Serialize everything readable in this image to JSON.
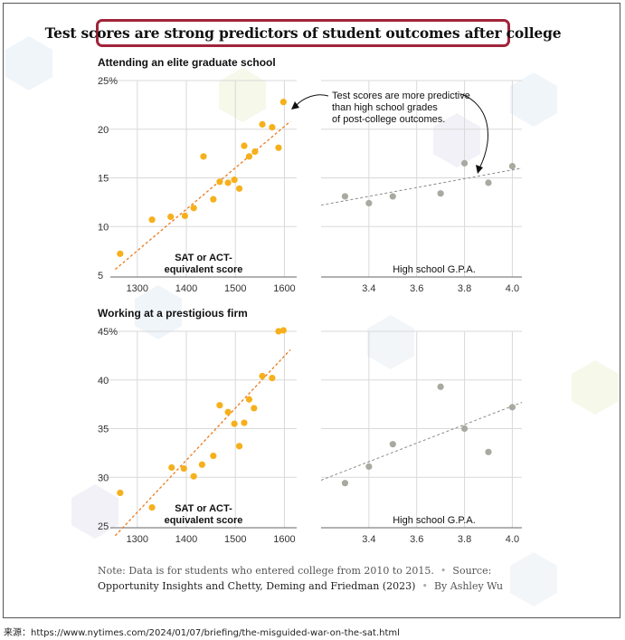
{
  "title": "Test scores are strong predictors of student outcomes after college",
  "chart_data": [
    {
      "type": "scatter",
      "panel": "Attending an elite graduate school",
      "sat_panel": {
        "xlabel_line1": "SAT or ACT-",
        "xlabel_line2": "equivalent score",
        "x_ticks": [
          "1300",
          "1400",
          "1500",
          "1600"
        ],
        "xlim": [
          1245,
          1625
        ],
        "y_ticks": [
          "25%",
          "20",
          "15",
          "10",
          "5"
        ],
        "ylim": [
          5,
          25
        ],
        "points": [
          {
            "x": 1265,
            "y": 7.2
          },
          {
            "x": 1330,
            "y": 10.7
          },
          {
            "x": 1368,
            "y": 11.0
          },
          {
            "x": 1397,
            "y": 11.1
          },
          {
            "x": 1415,
            "y": 11.9
          },
          {
            "x": 1435,
            "y": 17.2
          },
          {
            "x": 1455,
            "y": 12.8
          },
          {
            "x": 1468,
            "y": 14.6
          },
          {
            "x": 1485,
            "y": 14.5
          },
          {
            "x": 1498,
            "y": 14.8
          },
          {
            "x": 1508,
            "y": 13.9
          },
          {
            "x": 1518,
            "y": 18.3
          },
          {
            "x": 1528,
            "y": 17.2
          },
          {
            "x": 1540,
            "y": 17.7
          },
          {
            "x": 1555,
            "y": 20.5
          },
          {
            "x": 1575,
            "y": 20.2
          },
          {
            "x": 1588,
            "y": 18.1
          },
          {
            "x": 1598,
            "y": 22.8
          }
        ],
        "trend": [
          {
            "x": 1255,
            "y": 5.6
          },
          {
            "x": 1612,
            "y": 20.8
          }
        ]
      },
      "gpa_panel": {
        "xlabel": "High school G.P.A.",
        "x_ticks": [
          "3.4",
          "3.6",
          "3.8",
          "4.0"
        ],
        "xlim": [
          3.2,
          4.04
        ],
        "ylim": [
          5,
          25
        ],
        "points": [
          {
            "x": 3.3,
            "y": 13.1
          },
          {
            "x": 3.4,
            "y": 12.4
          },
          {
            "x": 3.5,
            "y": 13.1
          },
          {
            "x": 3.7,
            "y": 13.4
          },
          {
            "x": 3.8,
            "y": 16.5
          },
          {
            "x": 3.9,
            "y": 14.5
          },
          {
            "x": 4.0,
            "y": 16.2
          }
        ],
        "trend": [
          {
            "x": 3.2,
            "y": 12.2
          },
          {
            "x": 4.04,
            "y": 16.0
          }
        ]
      },
      "annotation": [
        "Test scores are more predictive",
        "than high school grades",
        "of post-college outcomes."
      ]
    },
    {
      "type": "scatter",
      "panel": "Working at a prestigious firm",
      "sat_panel": {
        "xlabel_line1": "SAT or ACT-",
        "xlabel_line2": "equivalent score",
        "x_ticks": [
          "1300",
          "1400",
          "1500",
          "1600"
        ],
        "xlim": [
          1245,
          1625
        ],
        "y_ticks": [
          "45%",
          "40",
          "35",
          "30",
          "25"
        ],
        "ylim": [
          25,
          45
        ],
        "points": [
          {
            "x": 1265,
            "y": 28.4
          },
          {
            "x": 1330,
            "y": 26.9
          },
          {
            "x": 1370,
            "y": 31.0
          },
          {
            "x": 1395,
            "y": 30.9
          },
          {
            "x": 1415,
            "y": 30.1
          },
          {
            "x": 1432,
            "y": 31.3
          },
          {
            "x": 1455,
            "y": 32.2
          },
          {
            "x": 1468,
            "y": 37.4
          },
          {
            "x": 1485,
            "y": 36.7
          },
          {
            "x": 1498,
            "y": 35.5
          },
          {
            "x": 1508,
            "y": 33.2
          },
          {
            "x": 1518,
            "y": 35.6
          },
          {
            "x": 1528,
            "y": 38.0
          },
          {
            "x": 1538,
            "y": 37.1
          },
          {
            "x": 1555,
            "y": 40.4
          },
          {
            "x": 1575,
            "y": 40.2
          },
          {
            "x": 1588,
            "y": 45.0
          },
          {
            "x": 1598,
            "y": 45.1
          }
        ],
        "trend": [
          {
            "x": 1255,
            "y": 24.0
          },
          {
            "x": 1612,
            "y": 43.1
          }
        ]
      },
      "gpa_panel": {
        "xlabel": "High school G.P.A.",
        "x_ticks": [
          "3.4",
          "3.6",
          "3.8",
          "4.0"
        ],
        "xlim": [
          3.2,
          4.04
        ],
        "ylim": [
          25,
          45
        ],
        "points": [
          {
            "x": 3.3,
            "y": 29.4
          },
          {
            "x": 3.4,
            "y": 31.1
          },
          {
            "x": 3.5,
            "y": 33.4
          },
          {
            "x": 3.7,
            "y": 39.3
          },
          {
            "x": 3.8,
            "y": 35.0
          },
          {
            "x": 3.9,
            "y": 32.6
          },
          {
            "x": 4.0,
            "y": 37.2
          }
        ],
        "trend": [
          {
            "x": 3.2,
            "y": 29.7
          },
          {
            "x": 4.04,
            "y": 37.7
          }
        ]
      }
    }
  ],
  "colors": {
    "sat": "#f6b01c",
    "sat_trend": "#ec7a1c",
    "gpa": "#a9a9a0",
    "gpa_trend": "#8c8c88",
    "grid": "#d9d9d9",
    "title_border": "#a1243a"
  },
  "footnote": {
    "note": "Note: Data is for students who entered college from 2010 to 2015.",
    "source_label": "Source:",
    "source_name": "Opportunity Insights and Chetty, Deming and Friedman (2023)",
    "byline": "By Ashley Wu"
  },
  "source_line": "来源：https://www.nytimes.com/2024/01/07/briefing/the-misguided-war-on-the-sat.html"
}
